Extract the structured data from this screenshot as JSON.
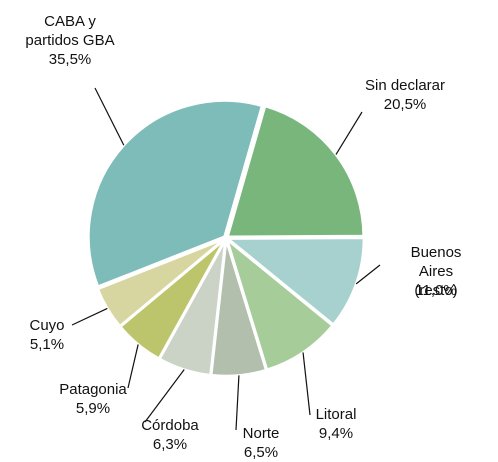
{
  "chart_data": {
    "type": "pie",
    "categories": [
      "Sin declarar",
      "Buenos Aires\n(resto)",
      "Litoral",
      "Norte",
      "Córdoba",
      "Patagonia",
      "Cuyo",
      "CABA y\npartidos GBA"
    ],
    "values": [
      20.5,
      11.0,
      9.4,
      6.5,
      6.3,
      5.9,
      5.1,
      35.5
    ],
    "value_labels": [
      "20,5%",
      "11,0%",
      "9,4%",
      "6,5%",
      "6,3%",
      "5,9%",
      "5,1%",
      "35,5%"
    ],
    "colors": [
      "#78b67c",
      "#a7d1ce",
      "#a6cc99",
      "#b3bfad",
      "#cbd3c7",
      "#bcc56b",
      "#d7d6a0",
      "#7dbcb8"
    ]
  }
}
